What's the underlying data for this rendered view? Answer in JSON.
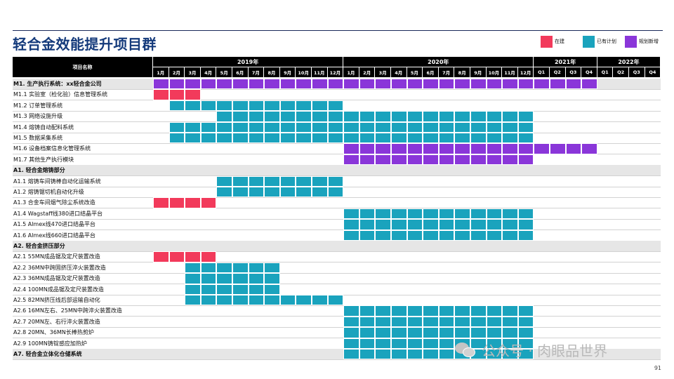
{
  "title": "轻合金效能提升项目群",
  "legend": [
    {
      "label": "在建",
      "color": "#f23a5b",
      "key": "building"
    },
    {
      "label": "已有计划",
      "color": "#1aa3bd",
      "key": "planned"
    },
    {
      "label": "规划新增",
      "color": "#8a36d9",
      "key": "new"
    }
  ],
  "header": {
    "name_label": "项目名称",
    "years": [
      {
        "label": "2019年",
        "cols": 12
      },
      {
        "label": "2020年",
        "cols": 12
      },
      {
        "label": "2021年",
        "cols": 4
      },
      {
        "label": "2022年",
        "cols": 4
      }
    ],
    "columns": [
      "1月",
      "2月",
      "3月",
      "4月",
      "5月",
      "6月",
      "7月",
      "8月",
      "9月",
      "10月",
      "11月",
      "12月",
      "1月",
      "2月",
      "3月",
      "4月",
      "5月",
      "6月",
      "7月",
      "8月",
      "9月",
      "10月",
      "11月",
      "12月",
      "Q1",
      "Q2",
      "Q3",
      "Q4",
      "Q1",
      "Q2",
      "Q3",
      "Q4"
    ]
  },
  "rows": [
    {
      "label": "M1. 生产执行系统：xx轻合金公司",
      "section": true,
      "bars": [
        {
          "start": 0,
          "end": 28,
          "status": "new"
        }
      ]
    },
    {
      "label": "M1.1 实验室（检化验）信息管理系统",
      "section": false,
      "bars": [
        {
          "start": 0,
          "end": 3,
          "status": "building"
        }
      ]
    },
    {
      "label": "M1.2 订单管理系统",
      "section": false,
      "bars": [
        {
          "start": 1,
          "end": 12,
          "status": "planned"
        }
      ]
    },
    {
      "label": "M1.3 网络设施升级",
      "section": false,
      "bars": [
        {
          "start": 4,
          "end": 24,
          "status": "planned"
        }
      ]
    },
    {
      "label": "M1.4 熔铸自动配料系统",
      "section": false,
      "bars": [
        {
          "start": 1,
          "end": 24,
          "status": "planned"
        }
      ]
    },
    {
      "label": "M1.5 数据采集系统",
      "section": false,
      "bars": [
        {
          "start": 1,
          "end": 24,
          "status": "planned"
        }
      ]
    },
    {
      "label": "M1.6 设备档案信息化管理系统",
      "section": false,
      "bars": [
        {
          "start": 12,
          "end": 28,
          "status": "new"
        }
      ]
    },
    {
      "label": "M1.7 其他生产执行模块",
      "section": false,
      "bars": [
        {
          "start": 12,
          "end": 24,
          "status": "new"
        }
      ]
    },
    {
      "label": "A1. 轻合金熔铸部分",
      "section": true,
      "bars": []
    },
    {
      "label": "A1.1 熔铸车间铸棒自动化运输系统",
      "section": false,
      "bars": [
        {
          "start": 4,
          "end": 12,
          "status": "planned"
        }
      ]
    },
    {
      "label": "A1.2 熔铸锯切机自动化升级",
      "section": false,
      "bars": [
        {
          "start": 4,
          "end": 12,
          "status": "planned"
        }
      ]
    },
    {
      "label": "A1.3 合金车间烟气除尘系统改造",
      "section": false,
      "bars": [
        {
          "start": 0,
          "end": 4,
          "status": "building"
        }
      ]
    },
    {
      "label": "A1.4 Wagstaff线380进口结晶平台",
      "section": false,
      "bars": [
        {
          "start": 12,
          "end": 24,
          "status": "planned"
        }
      ]
    },
    {
      "label": "A1.5 Almex线470进口结晶平台",
      "section": false,
      "bars": [
        {
          "start": 12,
          "end": 24,
          "status": "planned"
        }
      ]
    },
    {
      "label": "A1.6 Almex线660进口结晶平台",
      "section": false,
      "bars": [
        {
          "start": 12,
          "end": 24,
          "status": "planned"
        }
      ]
    },
    {
      "label": "A2. 轻合金挤压部分",
      "section": true,
      "bars": []
    },
    {
      "label": "A2.1 55MN成品锯及定尺装置改造",
      "section": false,
      "bars": [
        {
          "start": 0,
          "end": 4,
          "status": "building"
        }
      ]
    },
    {
      "label": "A2.2 36MN中跨固挤压淬火装置改造",
      "section": false,
      "bars": [
        {
          "start": 2,
          "end": 8,
          "status": "planned"
        }
      ]
    },
    {
      "label": "A2.3 36MN成品锯及定尺装置改造",
      "section": false,
      "bars": [
        {
          "start": 2,
          "end": 8,
          "status": "planned"
        }
      ]
    },
    {
      "label": "A2.4 100MN成品锯及定尺装置改造",
      "section": false,
      "bars": [
        {
          "start": 2,
          "end": 8,
          "status": "planned"
        }
      ]
    },
    {
      "label": "A2.5 82MN挤压线后部运输自动化",
      "section": false,
      "bars": [
        {
          "start": 2,
          "end": 12,
          "status": "planned"
        }
      ]
    },
    {
      "label": "A2.6 16MN左右、25MN中跨淬火装置改造",
      "section": false,
      "bars": [
        {
          "start": 12,
          "end": 24,
          "status": "planned"
        }
      ]
    },
    {
      "label": "A2.7 20MN左、右行淬火装置改造",
      "section": false,
      "bars": [
        {
          "start": 12,
          "end": 24,
          "status": "planned"
        }
      ]
    },
    {
      "label": "A2.8 20MN、36MN长棒热剪炉",
      "section": false,
      "bars": [
        {
          "start": 12,
          "end": 24,
          "status": "planned"
        }
      ]
    },
    {
      "label": "A2.9 100MN铸锭感应加热炉",
      "section": false,
      "bars": [
        {
          "start": 12,
          "end": 24,
          "status": "planned"
        }
      ]
    },
    {
      "label": "A7. 轻合金立体化仓储系统",
      "section": true,
      "bars": [
        {
          "start": 12,
          "end": 24,
          "status": "planned"
        }
      ]
    }
  ],
  "watermark": "公众号 · 肉眼品世界",
  "page_number": "91"
}
